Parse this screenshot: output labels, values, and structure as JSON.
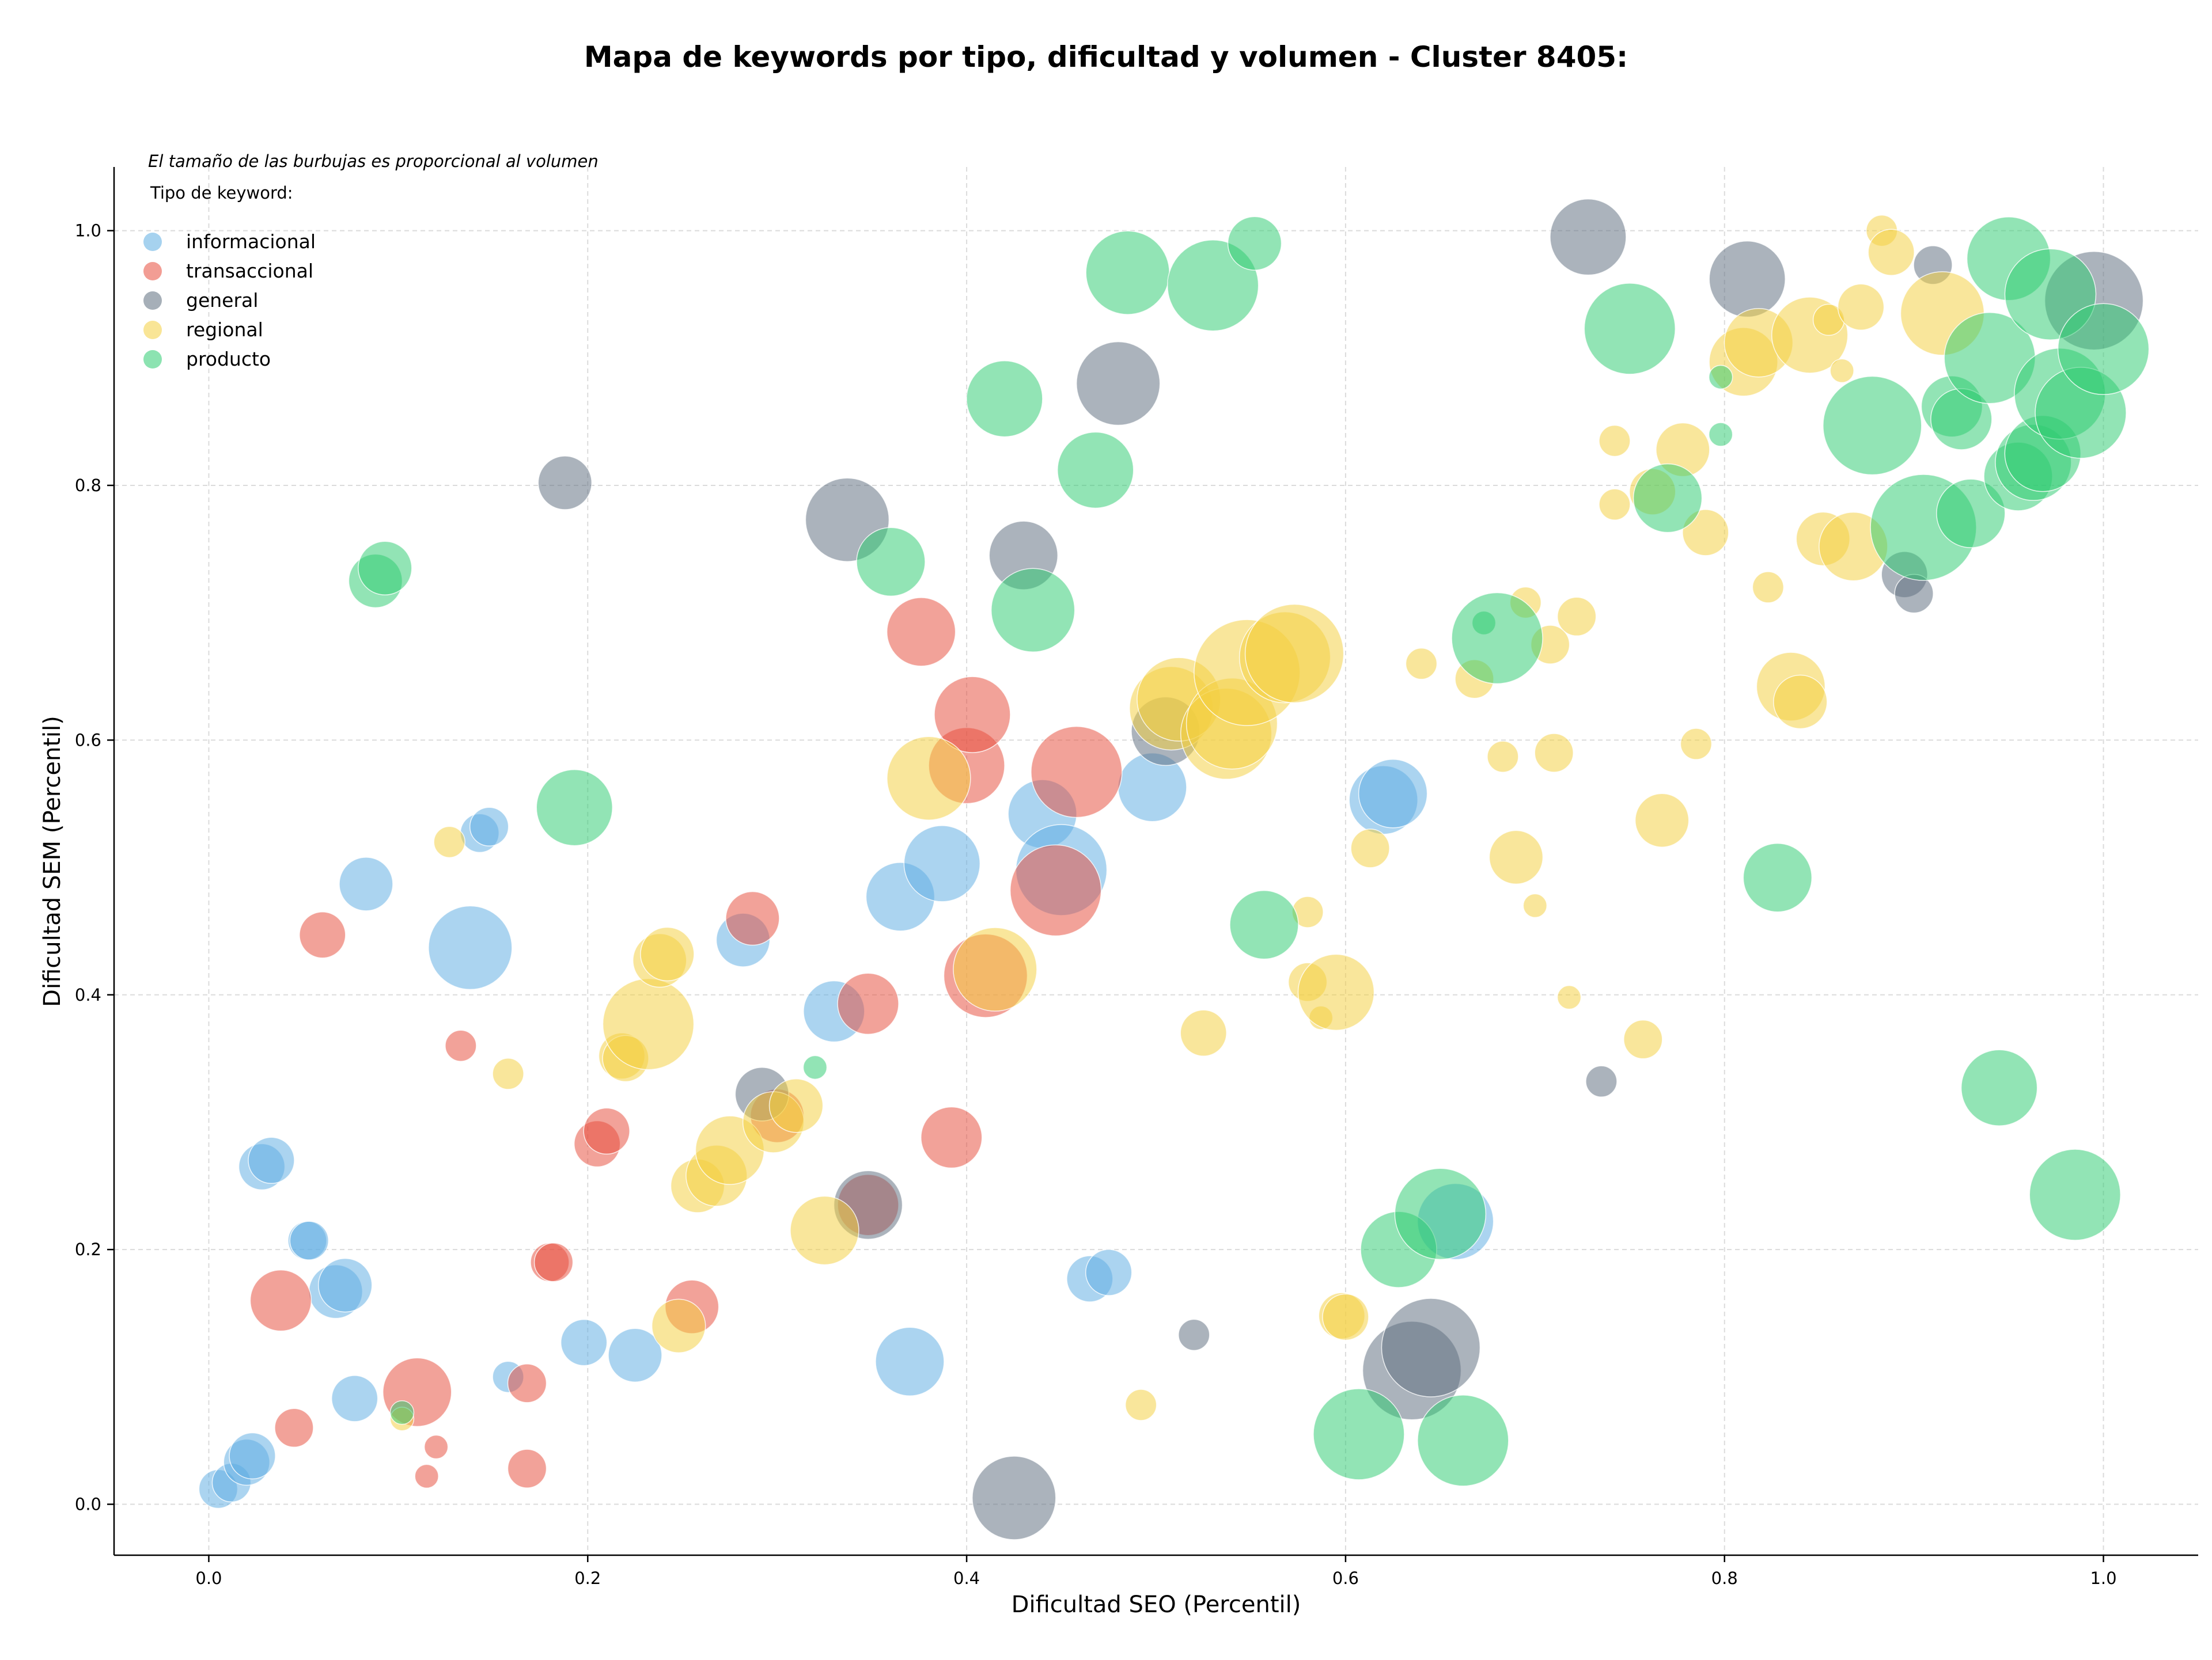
{
  "chart_data": {
    "type": "scatter",
    "title": "Mapa de keywords por tipo, dificultad y volumen - Cluster 8405:",
    "xlabel": "Dificultad SEO (Percentil)",
    "ylabel": "Dificultad SEM (Percentil)",
    "note": "El tamaño de las burbujas es proporcional al volumen",
    "xlim": [
      -0.05,
      1.05
    ],
    "ylim": [
      -0.04,
      1.05
    ],
    "xticks": [
      "0.0",
      "0.2",
      "0.4",
      "0.6",
      "0.8",
      "1.0"
    ],
    "yticks": [
      "0.0",
      "0.2",
      "0.4",
      "0.6",
      "0.8",
      "1.0"
    ],
    "grid": true,
    "legend": {
      "title": "Tipo de keyword:",
      "placement": "top-left",
      "entries": [
        {
          "label": "informacional",
          "color": "#5DADE2"
        },
        {
          "label": "transaccional",
          "color": "#E74C3C"
        },
        {
          "label": "general",
          "color": "#5D6D7E"
        },
        {
          "label": "regional",
          "color": "#F4D03F"
        },
        {
          "label": "producto",
          "color": "#2ECC71"
        }
      ]
    },
    "series": [
      {
        "name": "informacional",
        "color": "#5DADE2",
        "points": [
          {
            "x": 0.005,
            "y": 0.012,
            "size": 3
          },
          {
            "x": 0.012,
            "y": 0.017,
            "size": 3
          },
          {
            "x": 0.02,
            "y": 0.033,
            "size": 4
          },
          {
            "x": 0.023,
            "y": 0.038,
            "size": 4
          },
          {
            "x": 0.028,
            "y": 0.265,
            "size": 4
          },
          {
            "x": 0.033,
            "y": 0.27,
            "size": 4
          },
          {
            "x": 0.052,
            "y": 0.207,
            "size": 3
          },
          {
            "x": 0.053,
            "y": 0.207,
            "size": 3
          },
          {
            "x": 0.067,
            "y": 0.167,
            "size": 5
          },
          {
            "x": 0.072,
            "y": 0.172,
            "size": 5
          },
          {
            "x": 0.077,
            "y": 0.083,
            "size": 4
          },
          {
            "x": 0.083,
            "y": 0.487,
            "size": 5
          },
          {
            "x": 0.138,
            "y": 0.437,
            "size": 9
          },
          {
            "x": 0.143,
            "y": 0.527,
            "size": 3
          },
          {
            "x": 0.148,
            "y": 0.532,
            "size": 3
          },
          {
            "x": 0.158,
            "y": 0.1,
            "size": 2
          },
          {
            "x": 0.198,
            "y": 0.127,
            "size": 4
          },
          {
            "x": 0.225,
            "y": 0.117,
            "size": 5
          },
          {
            "x": 0.282,
            "y": 0.443,
            "size": 5
          },
          {
            "x": 0.33,
            "y": 0.387,
            "size": 6
          },
          {
            "x": 0.365,
            "y": 0.477,
            "size": 7
          },
          {
            "x": 0.37,
            "y": 0.112,
            "size": 7
          },
          {
            "x": 0.387,
            "y": 0.503,
            "size": 8
          },
          {
            "x": 0.44,
            "y": 0.542,
            "size": 7
          },
          {
            "x": 0.45,
            "y": 0.498,
            "size": 10
          },
          {
            "x": 0.465,
            "y": 0.177,
            "size": 4
          },
          {
            "x": 0.475,
            "y": 0.182,
            "size": 4
          },
          {
            "x": 0.498,
            "y": 0.563,
            "size": 7
          },
          {
            "x": 0.62,
            "y": 0.553,
            "size": 7
          },
          {
            "x": 0.625,
            "y": 0.558,
            "size": 7
          },
          {
            "x": 0.658,
            "y": 0.222,
            "size": 8
          }
        ]
      },
      {
        "name": "transaccional",
        "color": "#E74C3C",
        "points": [
          {
            "x": 0.038,
            "y": 0.16,
            "size": 6
          },
          {
            "x": 0.045,
            "y": 0.06,
            "size": 3
          },
          {
            "x": 0.06,
            "y": 0.447,
            "size": 4
          },
          {
            "x": 0.11,
            "y": 0.088,
            "size": 7
          },
          {
            "x": 0.115,
            "y": 0.022,
            "size": 1
          },
          {
            "x": 0.12,
            "y": 0.045,
            "size": 1
          },
          {
            "x": 0.133,
            "y": 0.36,
            "size": 2
          },
          {
            "x": 0.168,
            "y": 0.095,
            "size": 3
          },
          {
            "x": 0.168,
            "y": 0.028,
            "size": 3
          },
          {
            "x": 0.18,
            "y": 0.19,
            "size": 3
          },
          {
            "x": 0.182,
            "y": 0.19,
            "size": 3
          },
          {
            "x": 0.205,
            "y": 0.283,
            "size": 4
          },
          {
            "x": 0.21,
            "y": 0.293,
            "size": 4
          },
          {
            "x": 0.255,
            "y": 0.155,
            "size": 5
          },
          {
            "x": 0.287,
            "y": 0.46,
            "size": 5
          },
          {
            "x": 0.3,
            "y": 0.305,
            "size": 5
          },
          {
            "x": 0.348,
            "y": 0.235,
            "size": 6
          },
          {
            "x": 0.348,
            "y": 0.393,
            "size": 6
          },
          {
            "x": 0.376,
            "y": 0.685,
            "size": 7
          },
          {
            "x": 0.392,
            "y": 0.288,
            "size": 6
          },
          {
            "x": 0.4,
            "y": 0.58,
            "size": 8
          },
          {
            "x": 0.403,
            "y": 0.62,
            "size": 8
          },
          {
            "x": 0.41,
            "y": 0.415,
            "size": 9
          },
          {
            "x": 0.447,
            "y": 0.482,
            "size": 10
          },
          {
            "x": 0.458,
            "y": 0.575,
            "size": 10
          }
        ]
      },
      {
        "name": "general",
        "color": "#5D6D7E",
        "points": [
          {
            "x": 0.188,
            "y": 0.802,
            "size": 5
          },
          {
            "x": 0.292,
            "y": 0.322,
            "size": 5
          },
          {
            "x": 0.337,
            "y": 0.773,
            "size": 9
          },
          {
            "x": 0.348,
            "y": 0.235,
            "size": 7
          },
          {
            "x": 0.425,
            "y": 0.005,
            "size": 9
          },
          {
            "x": 0.43,
            "y": 0.745,
            "size": 7
          },
          {
            "x": 0.48,
            "y": 0.88,
            "size": 9
          },
          {
            "x": 0.505,
            "y": 0.607,
            "size": 7
          },
          {
            "x": 0.52,
            "y": 0.133,
            "size": 2
          },
          {
            "x": 0.635,
            "y": 0.105,
            "size": 11
          },
          {
            "x": 0.645,
            "y": 0.123,
            "size": 11
          },
          {
            "x": 0.728,
            "y": 0.995,
            "size": 8
          },
          {
            "x": 0.735,
            "y": 0.332,
            "size": 2
          },
          {
            "x": 0.812,
            "y": 0.962,
            "size": 8
          },
          {
            "x": 0.895,
            "y": 0.73,
            "size": 4
          },
          {
            "x": 0.9,
            "y": 0.715,
            "size": 3
          },
          {
            "x": 0.91,
            "y": 0.973,
            "size": 3
          },
          {
            "x": 0.995,
            "y": 0.945,
            "size": 11
          }
        ]
      },
      {
        "name": "regional",
        "color": "#F4D03F",
        "points": [
          {
            "x": 0.102,
            "y": 0.067,
            "size": 1
          },
          {
            "x": 0.127,
            "y": 0.52,
            "size": 2
          },
          {
            "x": 0.158,
            "y": 0.338,
            "size": 2
          },
          {
            "x": 0.218,
            "y": 0.352,
            "size": 4
          },
          {
            "x": 0.22,
            "y": 0.35,
            "size": 4
          },
          {
            "x": 0.232,
            "y": 0.377,
            "size": 10
          },
          {
            "x": 0.238,
            "y": 0.427,
            "size": 5
          },
          {
            "x": 0.242,
            "y": 0.432,
            "size": 5
          },
          {
            "x": 0.248,
            "y": 0.14,
            "size": 5
          },
          {
            "x": 0.258,
            "y": 0.25,
            "size": 5
          },
          {
            "x": 0.268,
            "y": 0.258,
            "size": 6
          },
          {
            "x": 0.275,
            "y": 0.278,
            "size": 7
          },
          {
            "x": 0.298,
            "y": 0.3,
            "size": 6
          },
          {
            "x": 0.31,
            "y": 0.313,
            "size": 5
          },
          {
            "x": 0.325,
            "y": 0.215,
            "size": 7
          },
          {
            "x": 0.38,
            "y": 0.57,
            "size": 9
          },
          {
            "x": 0.415,
            "y": 0.42,
            "size": 9
          },
          {
            "x": 0.492,
            "y": 0.078,
            "size": 2
          },
          {
            "x": 0.508,
            "y": 0.625,
            "size": 9
          },
          {
            "x": 0.512,
            "y": 0.632,
            "size": 9
          },
          {
            "x": 0.525,
            "y": 0.37,
            "size": 4
          },
          {
            "x": 0.537,
            "y": 0.605,
            "size": 10
          },
          {
            "x": 0.54,
            "y": 0.613,
            "size": 10
          },
          {
            "x": 0.548,
            "y": 0.653,
            "size": 12
          },
          {
            "x": 0.568,
            "y": 0.665,
            "size": 10
          },
          {
            "x": 0.573,
            "y": 0.668,
            "size": 11
          },
          {
            "x": 0.58,
            "y": 0.465,
            "size": 2
          },
          {
            "x": 0.58,
            "y": 0.41,
            "size": 3
          },
          {
            "x": 0.587,
            "y": 0.382,
            "size": 1
          },
          {
            "x": 0.595,
            "y": 0.402,
            "size": 8
          },
          {
            "x": 0.598,
            "y": 0.148,
            "size": 4
          },
          {
            "x": 0.6,
            "y": 0.147,
            "size": 4
          },
          {
            "x": 0.613,
            "y": 0.515,
            "size": 3
          },
          {
            "x": 0.64,
            "y": 0.66,
            "size": 2
          },
          {
            "x": 0.668,
            "y": 0.648,
            "size": 3
          },
          {
            "x": 0.683,
            "y": 0.587,
            "size": 2
          },
          {
            "x": 0.69,
            "y": 0.508,
            "size": 5
          },
          {
            "x": 0.695,
            "y": 0.708,
            "size": 2
          },
          {
            "x": 0.7,
            "y": 0.47,
            "size": 1
          },
          {
            "x": 0.708,
            "y": 0.675,
            "size": 3
          },
          {
            "x": 0.71,
            "y": 0.59,
            "size": 3
          },
          {
            "x": 0.718,
            "y": 0.398,
            "size": 1
          },
          {
            "x": 0.722,
            "y": 0.697,
            "size": 3
          },
          {
            "x": 0.742,
            "y": 0.835,
            "size": 2
          },
          {
            "x": 0.742,
            "y": 0.785,
            "size": 2
          },
          {
            "x": 0.757,
            "y": 0.365,
            "size": 3
          },
          {
            "x": 0.762,
            "y": 0.795,
            "size": 4
          },
          {
            "x": 0.767,
            "y": 0.537,
            "size": 5
          },
          {
            "x": 0.778,
            "y": 0.828,
            "size": 5
          },
          {
            "x": 0.785,
            "y": 0.597,
            "size": 2
          },
          {
            "x": 0.79,
            "y": 0.763,
            "size": 4
          },
          {
            "x": 0.81,
            "y": 0.897,
            "size": 7
          },
          {
            "x": 0.818,
            "y": 0.912,
            "size": 7
          },
          {
            "x": 0.823,
            "y": 0.72,
            "size": 2
          },
          {
            "x": 0.835,
            "y": 0.642,
            "size": 7
          },
          {
            "x": 0.84,
            "y": 0.63,
            "size": 5
          },
          {
            "x": 0.845,
            "y": 0.918,
            "size": 8
          },
          {
            "x": 0.852,
            "y": 0.758,
            "size": 5
          },
          {
            "x": 0.855,
            "y": 0.93,
            "size": 2
          },
          {
            "x": 0.862,
            "y": 0.89,
            "size": 1
          },
          {
            "x": 0.868,
            "y": 0.752,
            "size": 7
          },
          {
            "x": 0.872,
            "y": 0.94,
            "size": 4
          },
          {
            "x": 0.883,
            "y": 1.0,
            "size": 2
          },
          {
            "x": 0.888,
            "y": 0.983,
            "size": 4
          },
          {
            "x": 0.915,
            "y": 0.935,
            "size": 9
          }
        ]
      },
      {
        "name": "producto",
        "color": "#2ECC71",
        "points": [
          {
            "x": 0.088,
            "y": 0.725,
            "size": 5
          },
          {
            "x": 0.093,
            "y": 0.735,
            "size": 5
          },
          {
            "x": 0.102,
            "y": 0.072,
            "size": 1
          },
          {
            "x": 0.193,
            "y": 0.547,
            "size": 8
          },
          {
            "x": 0.32,
            "y": 0.343,
            "size": 1
          },
          {
            "x": 0.36,
            "y": 0.74,
            "size": 7
          },
          {
            "x": 0.42,
            "y": 0.868,
            "size": 8
          },
          {
            "x": 0.435,
            "y": 0.702,
            "size": 9
          },
          {
            "x": 0.468,
            "y": 0.812,
            "size": 8
          },
          {
            "x": 0.485,
            "y": 0.967,
            "size": 9
          },
          {
            "x": 0.53,
            "y": 0.957,
            "size": 10
          },
          {
            "x": 0.552,
            "y": 0.99,
            "size": 5
          },
          {
            "x": 0.557,
            "y": 0.455,
            "size": 7
          },
          {
            "x": 0.607,
            "y": 0.055,
            "size": 10
          },
          {
            "x": 0.628,
            "y": 0.2,
            "size": 8
          },
          {
            "x": 0.65,
            "y": 0.228,
            "size": 10
          },
          {
            "x": 0.662,
            "y": 0.05,
            "size": 10
          },
          {
            "x": 0.673,
            "y": 0.692,
            "size": 1
          },
          {
            "x": 0.68,
            "y": 0.68,
            "size": 10
          },
          {
            "x": 0.75,
            "y": 0.923,
            "size": 10
          },
          {
            "x": 0.77,
            "y": 0.79,
            "size": 7
          },
          {
            "x": 0.798,
            "y": 0.885,
            "size": 1
          },
          {
            "x": 0.798,
            "y": 0.84,
            "size": 1
          },
          {
            "x": 0.828,
            "y": 0.492,
            "size": 7
          },
          {
            "x": 0.878,
            "y": 0.847,
            "size": 11
          },
          {
            "x": 0.905,
            "y": 0.767,
            "size": 12
          },
          {
            "x": 0.92,
            "y": 0.862,
            "size": 6
          },
          {
            "x": 0.925,
            "y": 0.852,
            "size": 6
          },
          {
            "x": 0.93,
            "y": 0.778,
            "size": 7
          },
          {
            "x": 0.94,
            "y": 0.9,
            "size": 10
          },
          {
            "x": 0.945,
            "y": 0.327,
            "size": 8
          },
          {
            "x": 0.95,
            "y": 0.978,
            "size": 9
          },
          {
            "x": 0.955,
            "y": 0.807,
            "size": 7
          },
          {
            "x": 0.963,
            "y": 0.818,
            "size": 8
          },
          {
            "x": 0.968,
            "y": 0.825,
            "size": 8
          },
          {
            "x": 0.972,
            "y": 0.95,
            "size": 10
          },
          {
            "x": 0.977,
            "y": 0.872,
            "size": 10
          },
          {
            "x": 0.985,
            "y": 0.243,
            "size": 10
          },
          {
            "x": 0.988,
            "y": 0.857,
            "size": 10
          },
          {
            "x": 1.0,
            "y": 0.907,
            "size": 10
          }
        ]
      }
    ]
  }
}
